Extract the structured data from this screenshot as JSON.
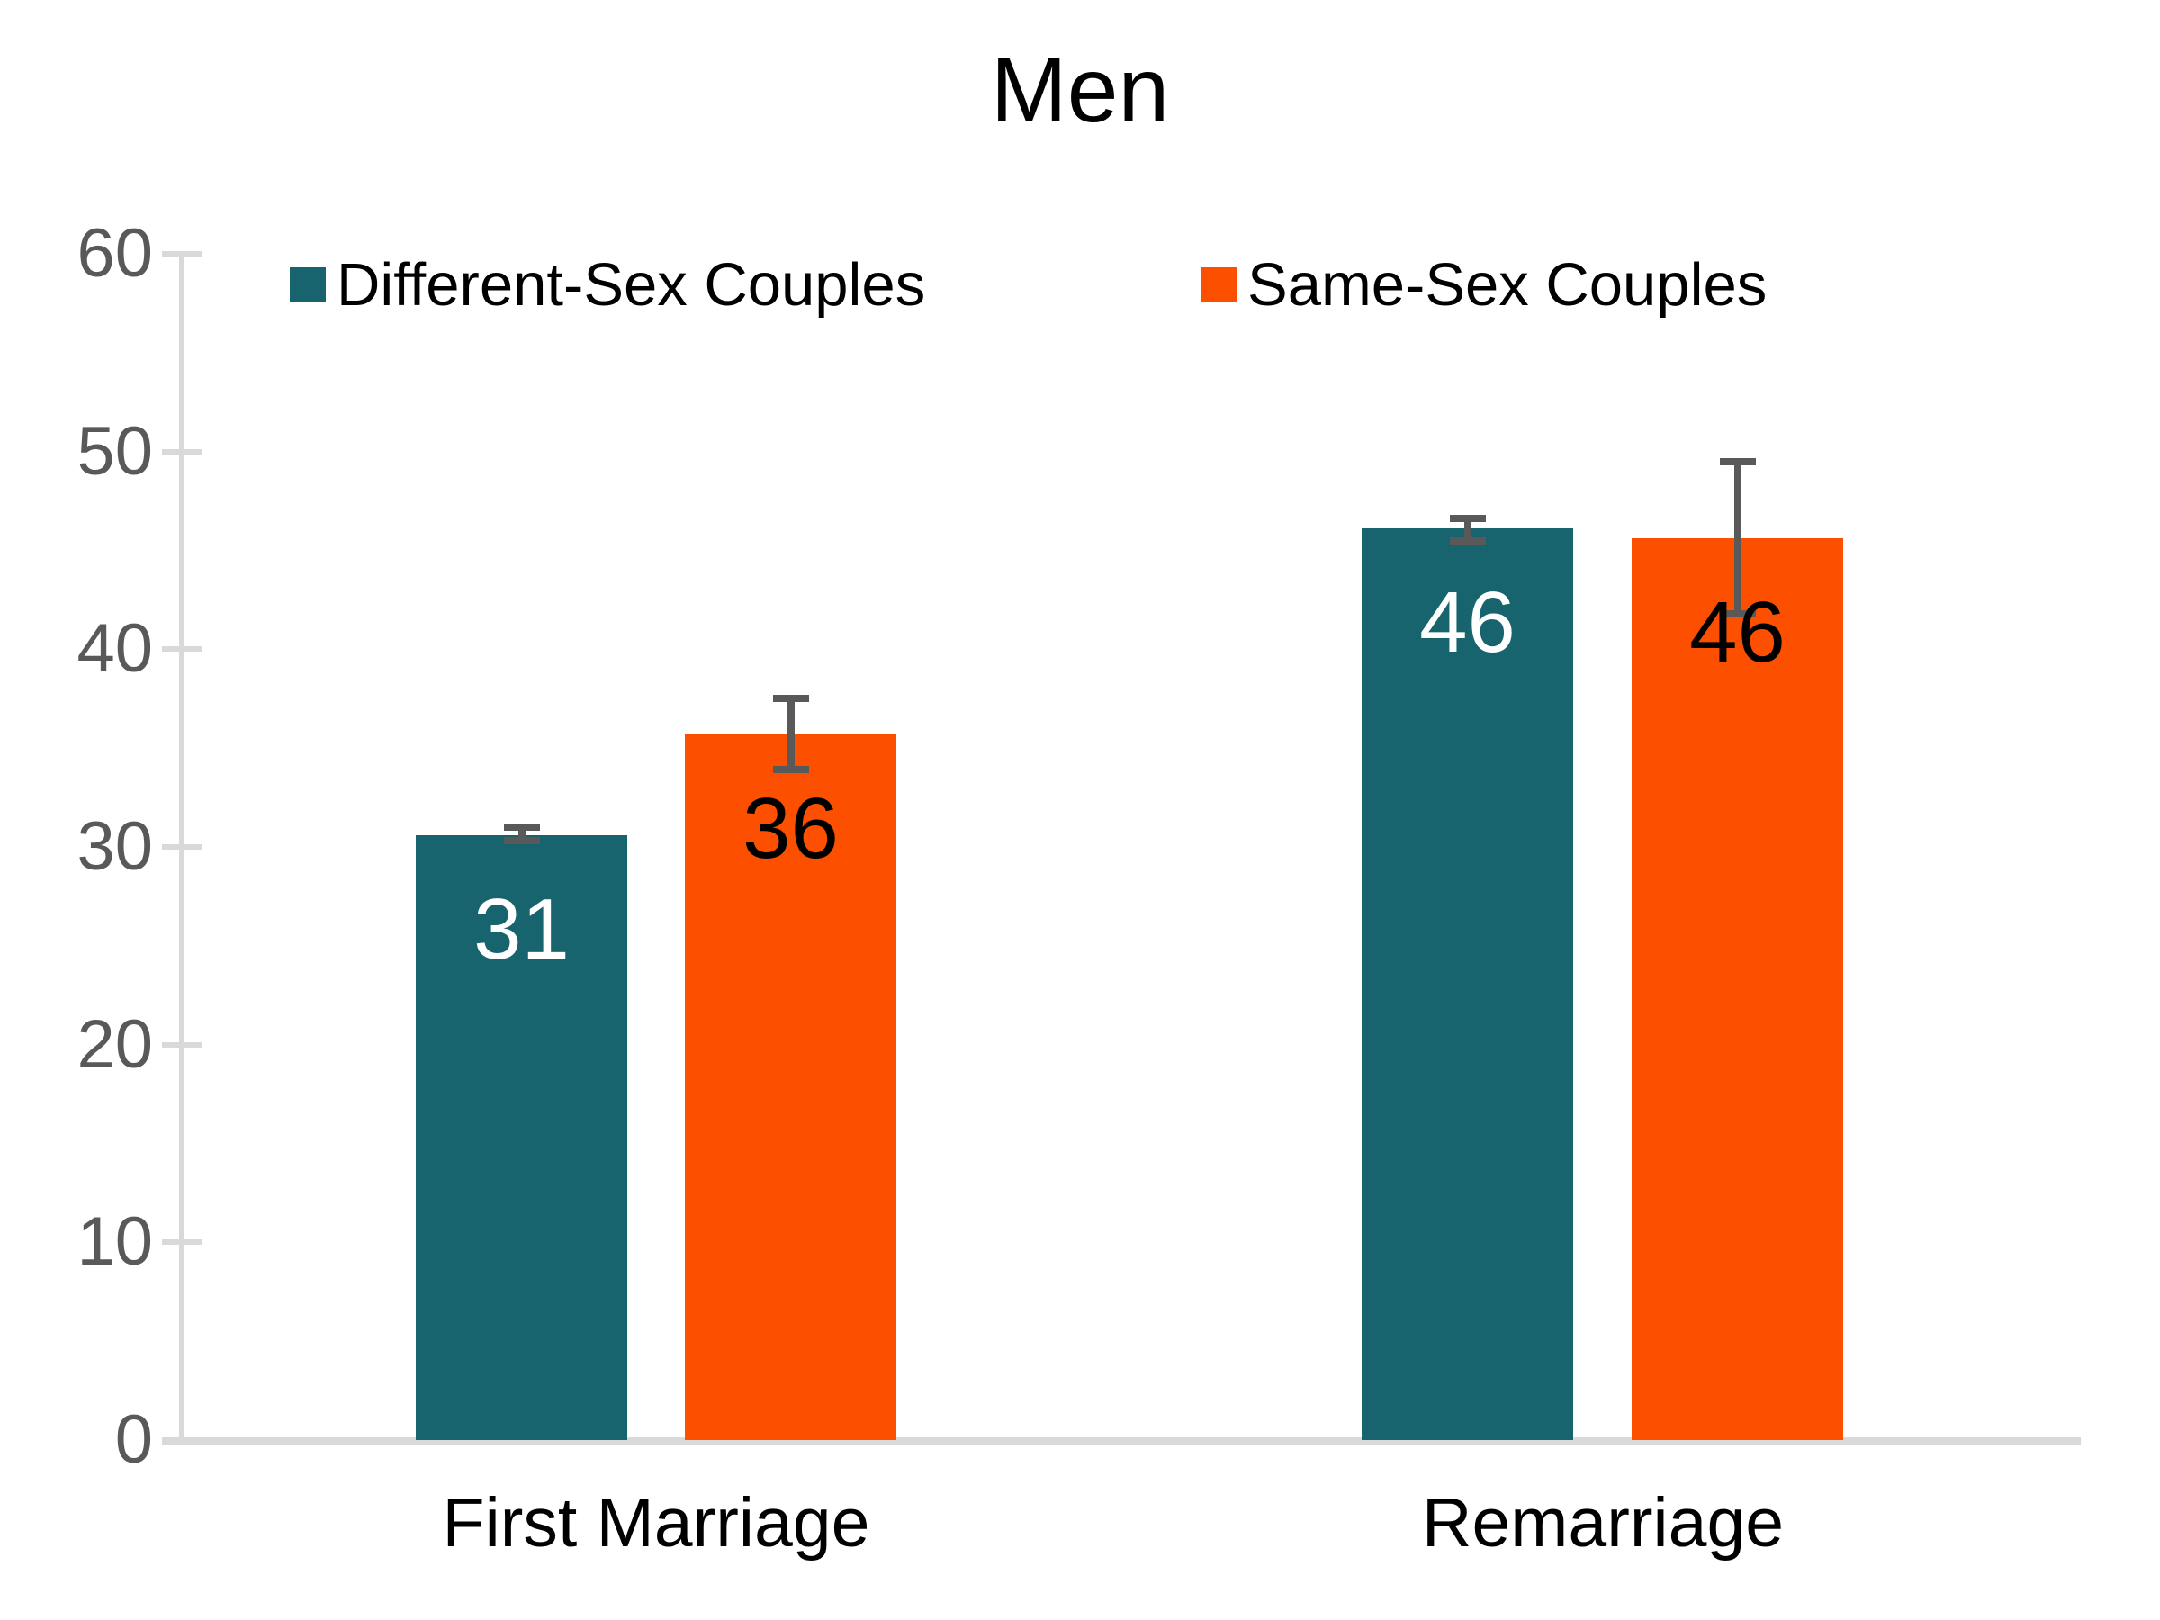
{
  "chart_data": {
    "type": "bar",
    "title": "Men",
    "categories": [
      "First Marriage",
      "Remarriage"
    ],
    "series": [
      {
        "name": "Different-Sex Couples",
        "color": "#17646F",
        "label_color": "#FFFFFF",
        "values": [
          30.6,
          46.1
        ],
        "data_labels": [
          "31",
          "46"
        ],
        "error_high": [
          0.4,
          0.5
        ],
        "error_low": [
          0.3,
          0.6
        ]
      },
      {
        "name": "Same-Sex Couples",
        "color": "#FC4F00",
        "label_color": "#000000",
        "values": [
          35.7,
          45.6
        ],
        "data_labels": [
          "36",
          "46"
        ],
        "error_high": [
          1.8,
          3.9
        ],
        "error_low": [
          1.8,
          3.8
        ]
      }
    ],
    "ylim": [
      0,
      60
    ],
    "yticks": [
      0,
      10,
      20,
      30,
      40,
      50,
      60
    ],
    "grid": false,
    "legend_position": "top",
    "error_bar_color": "#595959",
    "axis_line_color": "#D9D9D9",
    "tick_label_color": "#595959"
  }
}
